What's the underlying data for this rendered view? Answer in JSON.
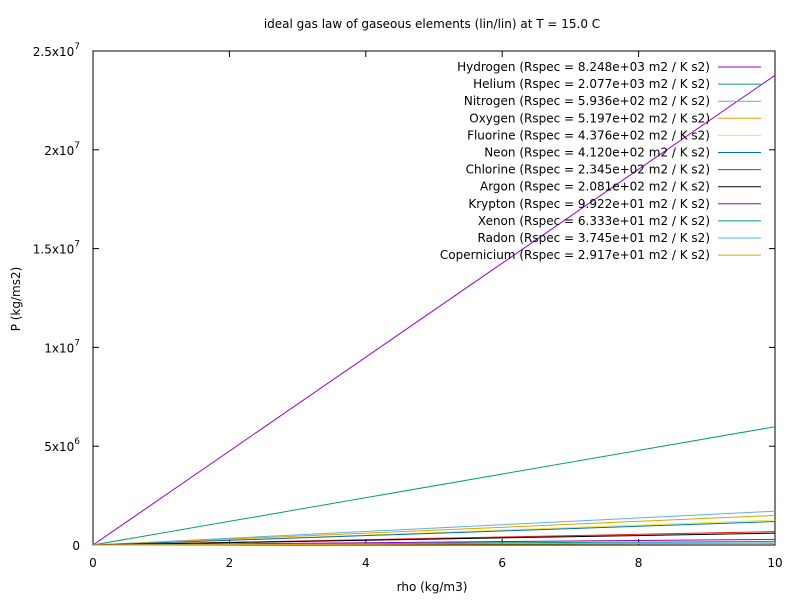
{
  "chart_data": {
    "type": "line",
    "title": "ideal gas law of gaseous elements (lin/lin) at T = 15.0 C",
    "xlabel": "rho (kg/m3)",
    "ylabel": "P (kg/ms2)",
    "xlim": [
      0,
      10
    ],
    "ylim": [
      0,
      25000000
    ],
    "x_ticks": [
      0,
      2,
      4,
      6,
      8,
      10
    ],
    "y_ticks": [
      {
        "value": 0,
        "mant": "0",
        "exp": ""
      },
      {
        "value": 5000000,
        "mant": "5x10",
        "exp": "6"
      },
      {
        "value": 10000000,
        "mant": "1x10",
        "exp": "7"
      },
      {
        "value": 15000000,
        "mant": "1.5x10",
        "exp": "7"
      },
      {
        "value": 20000000,
        "mant": "2x10",
        "exp": "7"
      },
      {
        "value": 25000000,
        "mant": "2.5x10",
        "exp": "7"
      }
    ],
    "grid": false,
    "legend_position": "top-right",
    "series": [
      {
        "name": "Hydrogen (Rspec = 8.248e+03 m2 / K s2)",
        "x": [
          0,
          10
        ],
        "values": [
          0,
          23770000
        ],
        "color": "#9400d3"
      },
      {
        "name": "Helium (Rspec = 2.077e+03 m2 / K s2)",
        "x": [
          0,
          10
        ],
        "values": [
          0,
          5985000
        ],
        "color": "#009e73"
      },
      {
        "name": "Nitrogen (Rspec = 5.936e+02 m2 / K s2)",
        "x": [
          0,
          10
        ],
        "values": [
          0,
          1711000
        ],
        "color": "#56b4e9"
      },
      {
        "name": "Oxygen (Rspec = 5.197e+02 m2 / K s2)",
        "x": [
          0,
          10
        ],
        "values": [
          0,
          1498000
        ],
        "color": "#e69f00"
      },
      {
        "name": "Fluorine (Rspec = 4.376e+02 m2 / K s2)",
        "x": [
          0,
          10
        ],
        "values": [
          0,
          1261000
        ],
        "color": "#f0e442"
      },
      {
        "name": "Neon (Rspec = 4.120e+02 m2 / K s2)",
        "x": [
          0,
          10
        ],
        "values": [
          0,
          1187000
        ],
        "color": "#0072b2"
      },
      {
        "name": "Chlorine (Rspec = 2.345e+02 m2 / K s2)",
        "x": [
          0,
          10
        ],
        "values": [
          0,
          675800
        ],
        "color": "#e51e10"
      },
      {
        "name": "Argon (Rspec = 2.081e+02 m2 / K s2)",
        "x": [
          0,
          10
        ],
        "values": [
          0,
          599700
        ],
        "color": "#000000"
      },
      {
        "name": "Krypton (Rspec = 9.922e+01 m2 / K s2)",
        "x": [
          0,
          10
        ],
        "values": [
          0,
          285900
        ],
        "color": "#9400d3"
      },
      {
        "name": "Xenon (Rspec = 6.333e+01 m2 / K s2)",
        "x": [
          0,
          10
        ],
        "values": [
          0,
          182500
        ],
        "color": "#009e73"
      },
      {
        "name": "Radon (Rspec = 3.745e+01 m2 / K s2)",
        "x": [
          0,
          10
        ],
        "values": [
          0,
          107900
        ],
        "color": "#56b4e9"
      },
      {
        "name": "Copernicium (Rspec = 2.917e+01 m2 / K s2)",
        "x": [
          0,
          10
        ],
        "values": [
          0,
          84060
        ],
        "color": "#e69f00"
      }
    ]
  }
}
